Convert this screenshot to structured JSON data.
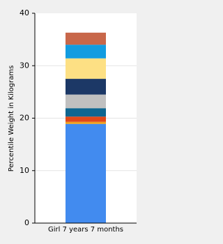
{
  "chart_data": {
    "type": "stacked-bar",
    "y_label": "Percentile Weight in Kilograms",
    "categories": [
      "Girl 7 years 7 months"
    ],
    "series": [
      {
        "color": "#428bef",
        "values": [
          18.9
        ]
      },
      {
        "color": "#f0a01e",
        "values": [
          0.4
        ]
      },
      {
        "color": "#e04818",
        "values": [
          1.0
        ]
      },
      {
        "color": "#0e6690",
        "values": [
          1.6
        ]
      },
      {
        "color": "#c0c0c0",
        "values": [
          2.6
        ]
      },
      {
        "color": "#1c3866",
        "values": [
          3.0
        ]
      },
      {
        "color": "#fde084",
        "values": [
          3.9
        ]
      },
      {
        "color": "#129ce0",
        "values": [
          2.6
        ]
      },
      {
        "color": "#c8674a",
        "values": [
          2.3
        ]
      }
    ],
    "ylim": [
      0,
      40
    ],
    "yticks": [
      0,
      10,
      20,
      30,
      40
    ],
    "grid": true
  }
}
